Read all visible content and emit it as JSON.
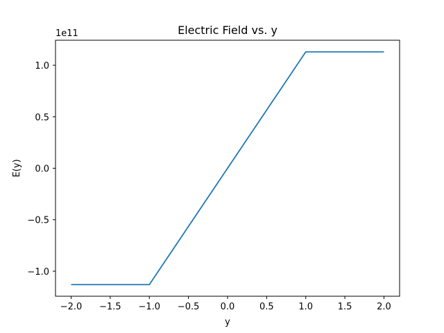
{
  "chart_data": {
    "type": "line",
    "title": "Electric Field vs. y",
    "xlabel": "y",
    "ylabel": "E(y)",
    "y_offset_label": "1e11",
    "xlim": [
      -2.2,
      2.2
    ],
    "ylim": [
      -1.243,
      1.243
    ],
    "x_ticks": [
      -2.0,
      -1.5,
      -1.0,
      -0.5,
      0.0,
      0.5,
      1.0,
      1.5,
      2.0
    ],
    "x_tick_labels": [
      "−2.0",
      "−1.5",
      "−1.0",
      "−0.5",
      "0.0",
      "0.5",
      "1.0",
      "1.5",
      "2.0"
    ],
    "y_ticks": [
      -1.0,
      -0.5,
      0.0,
      0.5,
      1.0
    ],
    "y_tick_labels": [
      "−1.0",
      "−0.5",
      "0.0",
      "0.5",
      "1.0"
    ],
    "grid": false,
    "series": [
      {
        "color": "#1f77b4",
        "x": [
          -2.0,
          -1.0,
          1.0,
          2.0
        ],
        "y": [
          -1.13,
          -1.13,
          1.13,
          1.13
        ]
      }
    ]
  }
}
